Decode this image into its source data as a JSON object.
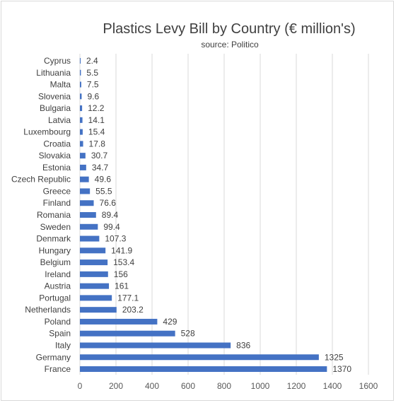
{
  "chart_data": {
    "type": "bar",
    "orientation": "horizontal",
    "title": "Plastics Levy Bill by Country (€ million's)",
    "subtitle": "source: Politico",
    "xlim": [
      0,
      1600
    ],
    "xticks": [
      0,
      200,
      400,
      600,
      800,
      1000,
      1200,
      1400,
      1600
    ],
    "grid": true,
    "bar_color": "#4472c4",
    "categories": [
      "Cyprus",
      "Lithuania",
      "Malta",
      "Slovenia",
      "Bulgaria",
      "Latvia",
      "Luxembourg",
      "Croatia",
      "Slovakia",
      "Estonia",
      "Czech Republic",
      "Greece",
      "Finland",
      "Romania",
      "Sweden",
      "Denmark",
      "Hungary",
      "Belgium",
      "Ireland",
      "Austria",
      "Portugal",
      "Netherlands",
      "Poland",
      "Spain",
      "Italy",
      "Germany",
      "France"
    ],
    "values": [
      2.4,
      5.5,
      7.5,
      9.6,
      12.2,
      14.1,
      15.4,
      17.8,
      30.7,
      34.7,
      49.6,
      55.5,
      76.6,
      89.4,
      99.4,
      107.3,
      141.9,
      153.4,
      156,
      161,
      177.1,
      203.2,
      429,
      528,
      836,
      1325,
      1370
    ],
    "value_labels": [
      "2.4",
      "5.5",
      "7.5",
      "9.6",
      "12.2",
      "14.1",
      "15.4",
      "17.8",
      "30.7",
      "34.7",
      "49.6",
      "55.5",
      "76.6",
      "89.4",
      "99.4",
      "107.3",
      "141.9",
      "153.4",
      "156",
      "161",
      "177.1",
      "203.2",
      "429",
      "528",
      "836",
      "1325",
      "1370"
    ]
  }
}
